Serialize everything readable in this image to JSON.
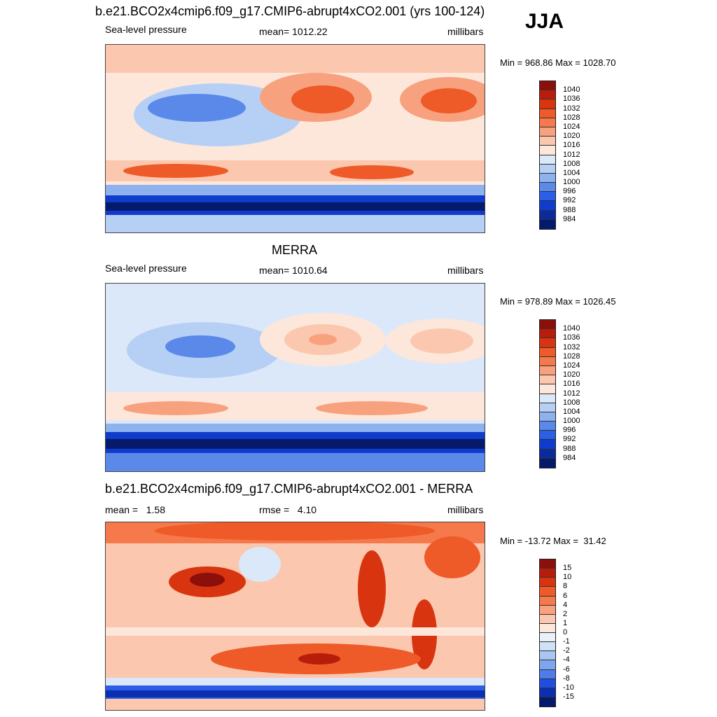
{
  "season_label": "JJA",
  "panels": [
    {
      "id": "model",
      "title": "b.e21.BCO2x4cmip6.f09_g17.CMIP6-abrupt4xCO2.001 (yrs 100-124)",
      "left_text": "Sea-level pressure",
      "center_text": "mean= 1012.22",
      "right_text": "millibars",
      "minmax": "Min = 968.86 Max = 1028.70",
      "colorbar_labels": [
        "1040",
        "1036",
        "1032",
        "1028",
        "1024",
        "1020",
        "1016",
        "1012",
        "1008",
        "1004",
        "1000",
        "996",
        "992",
        "988",
        "984"
      ],
      "colors": [
        "#8b0f0a",
        "#b81c0b",
        "#d8340f",
        "#ee5a28",
        "#f5794a",
        "#f8a17f",
        "#fbc7ae",
        "#fde7da",
        "#dbe8f9",
        "#b6d0f5",
        "#8db2ee",
        "#5a89ea",
        "#2a5fe6",
        "#0f3ccc",
        "#0a2a9e",
        "#051a6b"
      ]
    },
    {
      "id": "obs",
      "title": "MERRA",
      "left_text": "Sea-level pressure",
      "center_text": "mean= 1010.64",
      "right_text": "millibars",
      "minmax": "Min = 978.89 Max = 1026.45",
      "colorbar_labels": [
        "1040",
        "1036",
        "1032",
        "1028",
        "1024",
        "1020",
        "1016",
        "1012",
        "1008",
        "1004",
        "1000",
        "996",
        "992",
        "988",
        "984"
      ],
      "colors": [
        "#8b0f0a",
        "#b81c0b",
        "#d8340f",
        "#ee5a28",
        "#f5794a",
        "#f8a17f",
        "#fbc7ae",
        "#fde7da",
        "#dbe8f9",
        "#b6d0f5",
        "#8db2ee",
        "#5a89ea",
        "#2a5fe6",
        "#0f3ccc",
        "#0a2a9e",
        "#051a6b"
      ]
    },
    {
      "id": "diff",
      "title": "b.e21.BCO2x4cmip6.f09_g17.CMIP6-abrupt4xCO2.001 - MERRA",
      "left_text": "mean =   1.58",
      "center_text": "rmse =   4.10",
      "right_text": "millibars",
      "minmax": "Min = -13.72 Max =  31.42",
      "colorbar_labels": [
        "15",
        "10",
        "8",
        "6",
        "4",
        "2",
        "1",
        "0",
        "-1",
        "-2",
        "-4",
        "-6",
        "-8",
        "-10",
        "-15"
      ],
      "colors": [
        "#8b0f0a",
        "#b81c0b",
        "#d8340f",
        "#ee5a28",
        "#f5794a",
        "#f8a17f",
        "#fbc7ae",
        "#fde7da",
        "#eaf1fb",
        "#cfe0f7",
        "#a9c6f2",
        "#7ea6ee",
        "#4f7ce9",
        "#1f4fe0",
        "#0a2fb0",
        "#051a6b"
      ]
    }
  ]
}
